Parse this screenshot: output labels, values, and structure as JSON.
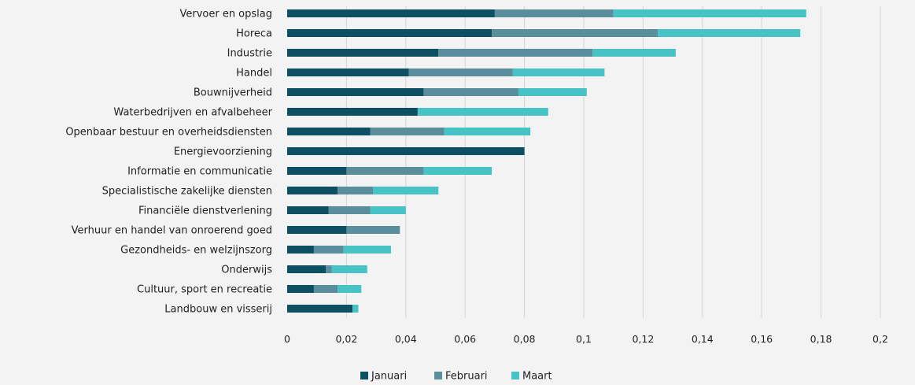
{
  "chart_data": {
    "type": "bar",
    "orientation": "horizontal",
    "stacked": true,
    "title": "",
    "xlabel": "",
    "ylabel": "",
    "xlim": [
      0,
      0.2
    ],
    "x_ticks": [
      "0",
      "0,02",
      "0,04",
      "0,06",
      "0,08",
      "0,1",
      "0,12",
      "0,14",
      "0,16",
      "0,18",
      "0,2"
    ],
    "grid": "vertical",
    "legend_position": "bottom",
    "categories": [
      "Vervoer en opslag",
      "Horeca",
      "Industrie",
      "Handel",
      "Bouwnijverheid",
      "Waterbedrijven en afvalbeheer",
      "Openbaar bestuur en overheidsdiensten",
      "Energievoorziening",
      "Informatie en communicatie",
      "Specialistische zakelijke diensten",
      "Financiële dienstverlening",
      "Verhuur en handel van onroerend goed",
      "Gezondheids- en welzijnszorg",
      "Onderwijs",
      "Cultuur, sport en recreatie",
      "Landbouw en visserij"
    ],
    "series": [
      {
        "name": "Januari",
        "color": "#0d4f63",
        "values": [
          0.07,
          0.069,
          0.051,
          0.041,
          0.046,
          0.044,
          0.028,
          0.08,
          0.02,
          0.017,
          0.014,
          0.02,
          0.009,
          0.013,
          0.009,
          0.022
        ]
      },
      {
        "name": "Februari",
        "color": "#5b8e9c",
        "values": [
          0.04,
          0.056,
          0.052,
          0.035,
          0.032,
          0.0,
          0.025,
          0.0,
          0.026,
          0.012,
          0.014,
          0.018,
          0.01,
          0.002,
          0.008,
          0.0
        ]
      },
      {
        "name": "Maart",
        "color": "#47c3c5",
        "values": [
          0.065,
          0.048,
          0.028,
          0.031,
          0.023,
          0.044,
          0.029,
          0.0,
          0.023,
          0.022,
          0.012,
          0.0,
          0.016,
          0.012,
          0.008,
          0.002
        ]
      }
    ]
  }
}
